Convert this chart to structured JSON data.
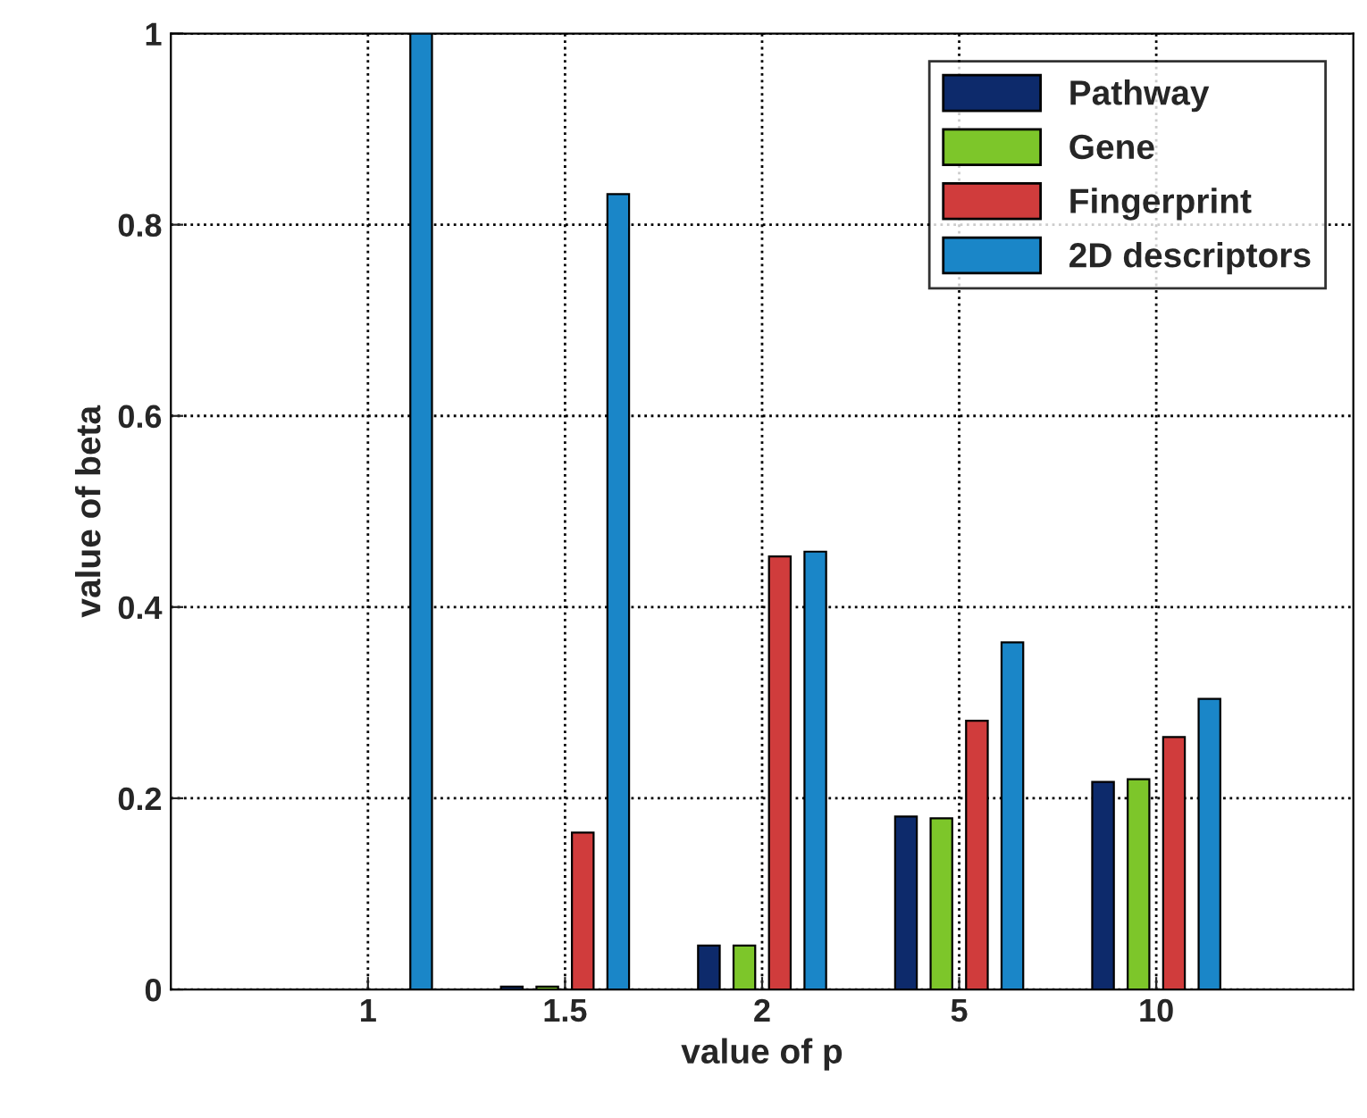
{
  "chart_data": {
    "type": "bar",
    "xlabel": "value of p",
    "ylabel": "value of beta",
    "categories": [
      "1",
      "1.5",
      "2",
      "5",
      "10"
    ],
    "series": [
      {
        "name": "Pathway",
        "color": "#0d2a6b",
        "values": [
          null,
          0.003,
          0.046,
          0.181,
          0.217
        ]
      },
      {
        "name": "Gene",
        "color": "#7dc62a",
        "values": [
          null,
          0.003,
          0.046,
          0.179,
          0.22
        ]
      },
      {
        "name": "Fingerprint",
        "color": "#d03c3c",
        "values": [
          null,
          0.164,
          0.453,
          0.281,
          0.264
        ]
      },
      {
        "name": "2D descriptors",
        "color": "#1a86c8",
        "values": [
          1,
          0.832,
          0.458,
          0.363,
          0.304
        ]
      }
    ],
    "ylim": [
      0,
      1
    ],
    "yticks": [
      0,
      0.2,
      0.4,
      0.6,
      0.8,
      1
    ],
    "grid": true,
    "legend": "top right",
    "line_style": "dotted"
  }
}
